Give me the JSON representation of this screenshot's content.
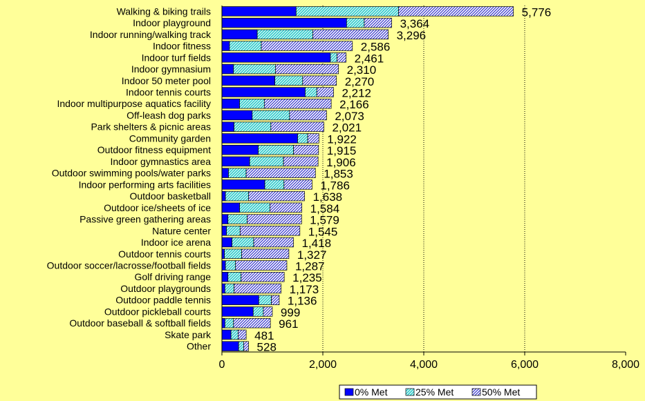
{
  "chart_data": {
    "type": "bar",
    "orientation": "horizontal",
    "stacked": true,
    "categories": [
      "Walking & biking trails",
      "Indoor playground",
      "Indoor running/walking track",
      "Indoor fitness",
      "Indoor turf fields",
      "Indoor gymnasium",
      "Indoor 50 meter pool",
      "Indoor tennis courts",
      "Indoor multipurpose aquatics facility",
      "Off-leash dog parks",
      "Park shelters & picnic areas",
      "Community garden",
      "Outdoor fitness equipment",
      "Indoor gymnastics area",
      "Outdoor swimming pools/water parks",
      "Indoor performing arts facilities",
      "Outdoor basketball",
      "Outdoor ice/sheets of ice",
      "Passive green gathering areas",
      "Nature center",
      "Indoor ice arena",
      "Outdoor tennis courts",
      "Outdoor soccer/lacrosse/football fields",
      "Golf driving range",
      "Outdoor playgrounds",
      "Outdoor paddle tennis",
      "Outdoor pickleball courts",
      "Outdoor baseball & softball fields",
      "Skate park",
      "Other"
    ],
    "series": [
      {
        "name": "0% Met",
        "color": "#0000FF",
        "pattern": "solid",
        "values": [
          1470,
          2470,
          700,
          150,
          2150,
          230,
          1050,
          1650,
          350,
          600,
          240,
          1500,
          720,
          550,
          130,
          850,
          70,
          350,
          120,
          90,
          200,
          50,
          70,
          120,
          60,
          730,
          620,
          60,
          180,
          330
        ]
      },
      {
        "name": "25% Met",
        "color": "#33CCCC",
        "pattern": "hatch",
        "values": [
          2030,
          350,
          1100,
          630,
          130,
          830,
          550,
          230,
          490,
          740,
          730,
          200,
          700,
          670,
          350,
          380,
          460,
          600,
          380,
          270,
          430,
          340,
          200,
          260,
          180,
          250,
          200,
          170,
          140,
          100
        ]
      },
      {
        "name": "50% Met",
        "color": "#6666FF",
        "pattern": "crosshatch",
        "values": [
          2276,
          544,
          1496,
          1806,
          181,
          1250,
          670,
          332,
          1326,
          733,
          1051,
          222,
          495,
          686,
          1373,
          556,
          1108,
          634,
          1079,
          1185,
          788,
          937,
          1017,
          855,
          933,
          156,
          179,
          731,
          161,
          98
        ]
      }
    ],
    "totals": [
      "5,776",
      "3,364",
      "3,296",
      "2,586",
      "2,461",
      "2,310",
      "2,270",
      "2,212",
      "2,166",
      "2,073",
      "2,021",
      "1,922",
      "1,915",
      "1,906",
      "1,853",
      "1,786",
      "1,638",
      "1,584",
      "1,579",
      "1,545",
      "1,418",
      "1,327",
      "1,287",
      "1,235",
      "1,173",
      "1,136",
      "999",
      "961",
      "481",
      "528"
    ],
    "xlim": [
      0,
      8000
    ],
    "xticks": [
      "0",
      "2,000",
      "4,000",
      "6,000",
      "8,000"
    ],
    "gridlines": [
      2000,
      4000,
      6000
    ],
    "grid_style": "dotted vertical",
    "legend_position": "bottom-right",
    "title": "",
    "xlabel": "",
    "ylabel": ""
  }
}
